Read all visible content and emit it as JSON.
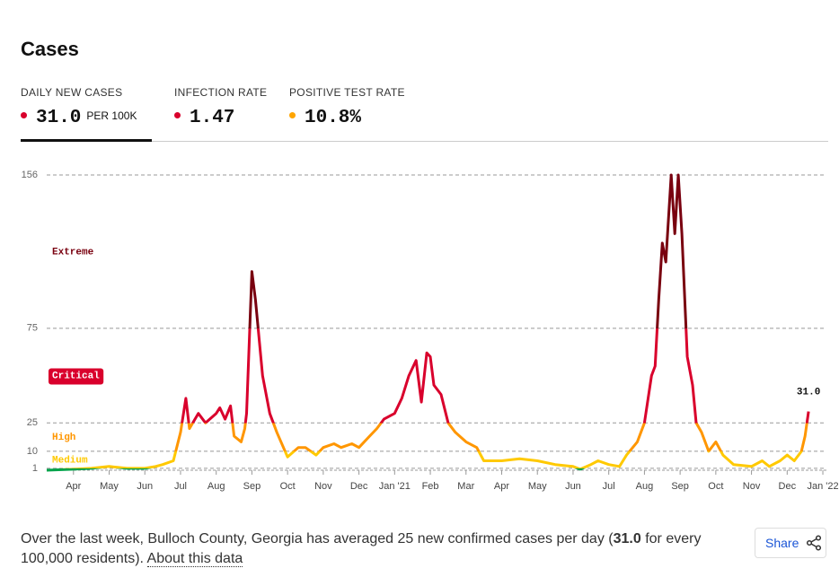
{
  "header": {
    "title": "Cases"
  },
  "tabs": [
    {
      "label": "DAILY NEW CASES",
      "value": "31.0",
      "unit": "PER 100K",
      "color": "#d9002c"
    },
    {
      "label": "INFECTION RATE",
      "value": "1.47",
      "color": "#d9002c"
    },
    {
      "label": "POSITIVE TEST RATE",
      "value": "10.8%",
      "color": "#ffa500"
    }
  ],
  "chart_data": {
    "type": "line",
    "x": [
      -0.75,
      0,
      0.5,
      1,
      1.5,
      2,
      2.3,
      2.5,
      2.8,
      3,
      3.15,
      3.25,
      3.5,
      3.7,
      4,
      4.1,
      4.25,
      4.4,
      4.5,
      4.7,
      4.8,
      4.85,
      5,
      5.1,
      5.3,
      5.5,
      5.7,
      6,
      6.3,
      6.5,
      6.8,
      7,
      7.3,
      7.5,
      7.8,
      8,
      8.3,
      8.5,
      8.7,
      9,
      9.2,
      9.4,
      9.6,
      9.75,
      9.9,
      10,
      10.1,
      10.3,
      10.5,
      10.7,
      11,
      11.3,
      11.5,
      12,
      12.5,
      13,
      13.5,
      14,
      14.2,
      14.5,
      14.7,
      15,
      15.3,
      15.5,
      15.8,
      16,
      16.2,
      16.3,
      16.4,
      16.5,
      16.6,
      16.75,
      16.85,
      16.95,
      17.05,
      17.2,
      17.35,
      17.45,
      17.6,
      17.8,
      18,
      18.2,
      18.5,
      19,
      19.3,
      19.5,
      19.8,
      20,
      20.2,
      20.4,
      20.5,
      20.6
    ],
    "values": [
      0,
      0.5,
      1,
      2,
      1,
      1,
      2,
      3,
      5,
      20,
      38,
      22,
      30,
      25,
      30,
      33,
      27,
      34,
      18,
      15,
      22,
      30,
      105,
      90,
      50,
      30,
      20,
      7,
      12,
      12,
      8,
      12,
      14,
      12,
      14,
      12,
      18,
      22,
      27,
      30,
      38,
      50,
      58,
      36,
      62,
      60,
      45,
      40,
      25,
      20,
      15,
      12,
      5,
      5,
      6,
      5,
      3,
      2,
      0.5,
      3,
      5,
      3,
      2,
      8,
      15,
      25,
      50,
      55,
      90,
      120,
      110,
      156,
      125,
      156,
      125,
      60,
      45,
      25,
      20,
      10,
      15,
      8,
      3,
      2,
      5,
      2,
      5,
      8,
      5,
      10,
      18,
      31
    ],
    "last_value_label": "31.0",
    "xlim": [
      -0.75,
      21.1
    ],
    "xticks": [
      {
        "value": 0,
        "label": "Apr"
      },
      {
        "value": 1,
        "label": "May"
      },
      {
        "value": 2,
        "label": "Jun"
      },
      {
        "value": 3,
        "label": "Jul"
      },
      {
        "value": 4,
        "label": "Aug"
      },
      {
        "value": 5,
        "label": "Sep"
      },
      {
        "value": 6,
        "label": "Oct"
      },
      {
        "value": 7,
        "label": "Nov"
      },
      {
        "value": 8,
        "label": "Dec"
      },
      {
        "value": 9,
        "label": "Jan '21"
      },
      {
        "value": 10,
        "label": "Feb"
      },
      {
        "value": 11,
        "label": "Mar"
      },
      {
        "value": 12,
        "label": "Apr"
      },
      {
        "value": 13,
        "label": "May"
      },
      {
        "value": 14,
        "label": "Jun"
      },
      {
        "value": 15,
        "label": "Jul"
      },
      {
        "value": 16,
        "label": "Aug"
      },
      {
        "value": 17,
        "label": "Sep"
      },
      {
        "value": 18,
        "label": "Oct"
      },
      {
        "value": 19,
        "label": "Nov"
      },
      {
        "value": 20,
        "label": "Dec"
      },
      {
        "value": 21,
        "label": "Jan '22"
      }
    ],
    "ylim": [
      0,
      156
    ],
    "yticks": [
      1,
      10,
      25,
      75,
      156
    ],
    "grid": true,
    "low_color": "#00a34a",
    "levels": [
      {
        "name": "Medium",
        "from": 1,
        "color": "#ffc900"
      },
      {
        "name": "High",
        "from": 10,
        "color": "#ff9600"
      },
      {
        "name": "Critical",
        "from": 25,
        "color": "#d9002c"
      },
      {
        "name": "Extreme",
        "from": 75,
        "color": "#79000f"
      }
    ]
  },
  "footer": {
    "before": "Over the last week, Bulloch County, Georgia has averaged 25 new confirmed cases per day (",
    "bold": "31.0",
    "after": " for every 100,000 residents). ",
    "link": "About this data"
  },
  "share": "Share"
}
